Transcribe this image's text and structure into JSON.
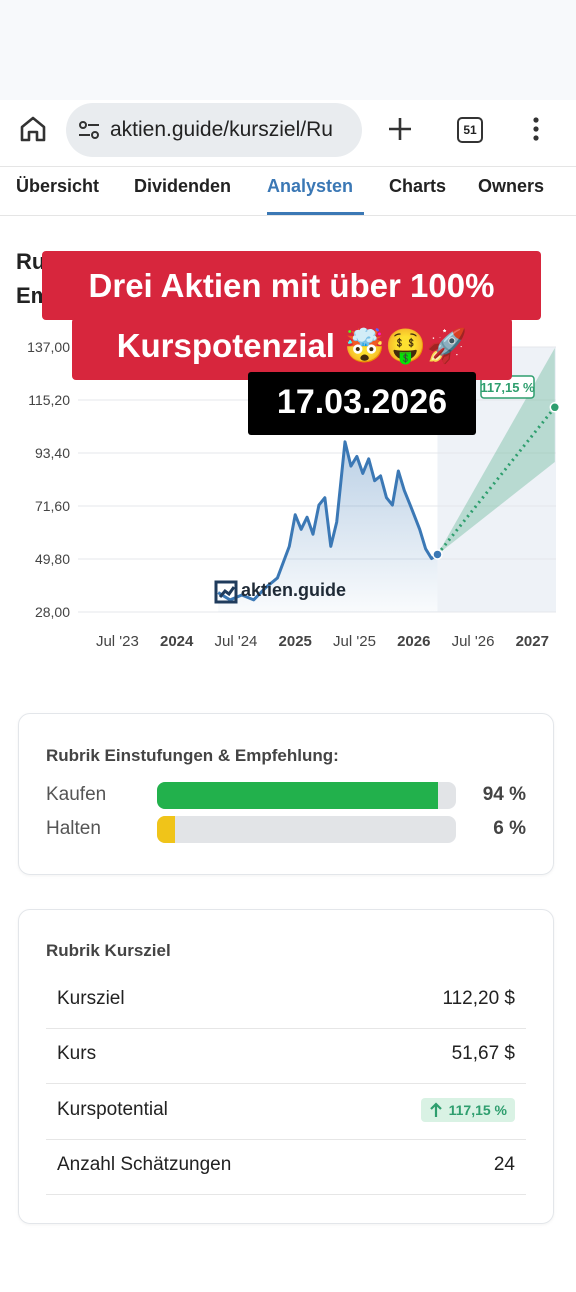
{
  "browser": {
    "url": "aktien.guide/kursziel/Ru",
    "tab_count": "51"
  },
  "tabs": [
    "Übersicht",
    "Dividenden",
    "Analysten",
    "Charts",
    "Owners"
  ],
  "heading": [
    "Ru",
    "Em"
  ],
  "overlay": {
    "title": [
      "Drei Aktien mit über 100%",
      "Kurspotenzial 🤯🤑🚀"
    ],
    "date": "17.03.2026"
  },
  "chart_data": {
    "type": "line",
    "xlim": [
      2023.1,
      2027.2
    ],
    "ylim": [
      28,
      137
    ],
    "xticks": [
      {
        "value": 2023.5,
        "label": "Jul '23"
      },
      {
        "value": 2024,
        "label": "2024"
      },
      {
        "value": 2024.5,
        "label": "Jul '24"
      },
      {
        "value": 2025,
        "label": "2025"
      },
      {
        "value": 2025.5,
        "label": "Jul '25"
      },
      {
        "value": 2026,
        "label": "2026"
      },
      {
        "value": 2026.5,
        "label": "Jul '26"
      },
      {
        "value": 2027,
        "label": "2027"
      }
    ],
    "yticks": [
      {
        "value": 137,
        "label": "137,00"
      },
      {
        "value": 115.2,
        "label": "115,20"
      },
      {
        "value": 93.4,
        "label": "93,40"
      },
      {
        "value": 71.6,
        "label": "71,60"
      },
      {
        "value": 49.8,
        "label": "49,80"
      },
      {
        "value": 28,
        "label": "28,00"
      }
    ],
    "grid": true,
    "x": [
      2024.35,
      2024.45,
      2024.55,
      2024.65,
      2024.75,
      2024.85,
      2024.95,
      2025.0,
      2025.05,
      2025.1,
      2025.15,
      2025.2,
      2025.25,
      2025.3,
      2025.35,
      2025.42,
      2025.47,
      2025.52,
      2025.57,
      2025.62,
      2025.67,
      2025.72,
      2025.77,
      2025.82,
      2025.87,
      2025.92,
      2025.97,
      2026.05,
      2026.1,
      2026.15,
      2026.2
    ],
    "series": [
      {
        "color": "#3b78b5",
        "values": [
          36,
          33,
          35,
          33,
          38,
          42,
          55,
          68,
          62,
          67,
          60,
          72,
          75,
          55,
          65,
          98,
          88,
          92,
          85,
          91,
          82,
          84,
          75,
          72,
          86,
          78,
          72,
          62,
          54,
          50,
          51.67
        ]
      }
    ],
    "forecast": {
      "x": [
        2026.2,
        2027.19
      ],
      "target": [
        51.67,
        112.2
      ],
      "high": [
        51.67,
        136.6
      ],
      "low": [
        51.67,
        89.7
      ],
      "color": "#2e9e6e"
    },
    "target_label": "117,15 %",
    "watermark": "aktien.guide"
  },
  "rating": {
    "title": "Rubrik Einstufungen & Empfehlung:",
    "rows": [
      {
        "label": "Kaufen",
        "value": 94,
        "value_label": "94 %",
        "color": "#22b14c"
      },
      {
        "label": "Halten",
        "value": 6,
        "value_label": "6 %",
        "color": "#f0c419"
      }
    ]
  },
  "price_target": {
    "title": "Rubrik Kursziel",
    "rows": [
      [
        "Kursziel",
        "112,20 $"
      ],
      [
        "Kurs",
        "51,67 $"
      ],
      [
        "Kurspotential",
        "117,15 %"
      ],
      [
        "Anzahl Schätzungen",
        "24"
      ]
    ]
  }
}
